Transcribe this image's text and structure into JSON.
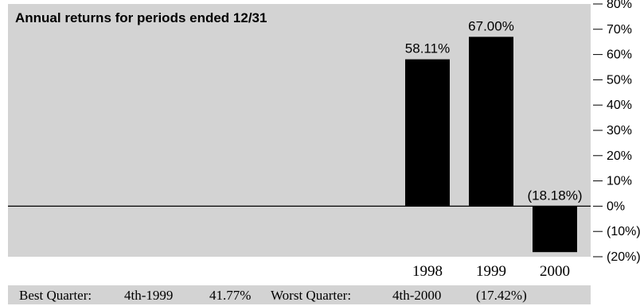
{
  "chart_data": {
    "type": "bar",
    "title": "Annual returns for periods ended 12/31",
    "categories": [
      "1998",
      "1999",
      "2000"
    ],
    "values": [
      58.11,
      67.0,
      -18.18
    ],
    "data_labels": [
      "58.11%",
      "67.00%",
      "(18.18%)"
    ],
    "ylim": [
      -20,
      80
    ],
    "yticks": [
      80,
      70,
      60,
      50,
      40,
      30,
      20,
      10,
      0,
      -10,
      -20
    ],
    "ytick_labels": [
      "80%",
      "70%",
      "60%",
      "50%",
      "40%",
      "30%",
      "20%",
      "10%",
      "0%",
      "(10%)",
      "(20%)"
    ],
    "xlabel": "",
    "ylabel": "",
    "grid": false,
    "bar_color": "#000000",
    "background_color": "#d3d3d3"
  },
  "footer": {
    "best_label": "Best Quarter:",
    "best_period": "4th-1999",
    "best_value": "41.77%",
    "worst_label": "Worst Quarter:",
    "worst_period": "4th-2000",
    "worst_value": "(17.42%)"
  }
}
